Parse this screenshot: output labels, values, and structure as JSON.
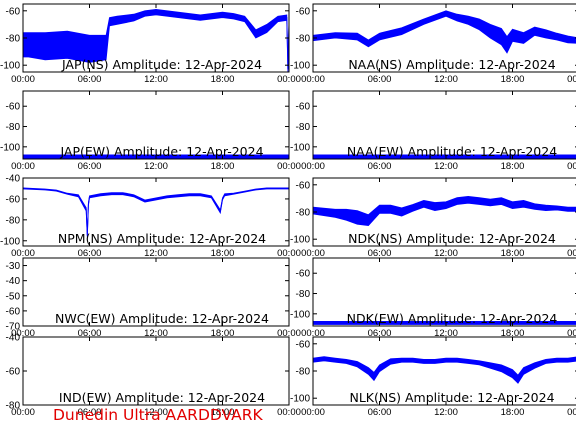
{
  "colors": {
    "trace": "#0000ff",
    "axis": "#000000",
    "footer": "#e10000",
    "background": "#ffffff"
  },
  "footer": "Dunedin Ultra AARDDVARK",
  "time_ticks": [
    "00:00",
    "06:00",
    "12:00",
    "18:00",
    "00:00"
  ],
  "chart_data": [
    {
      "type": "line",
      "title": "JAP(NS) Amplitude: 12-Apr-2024",
      "ylim": [
        -105,
        -55
      ],
      "yticks": [
        -60,
        -80,
        -100
      ],
      "series": [
        {
          "x": [
            0,
            0.5,
            2,
            4,
            6,
            7.5,
            7.8,
            8.5,
            10,
            11,
            12,
            13,
            14,
            15,
            16,
            17,
            18,
            19,
            20,
            21,
            22,
            23,
            23.8,
            23.9,
            24
          ],
          "values": [
            -85,
            -85,
            -86,
            -85,
            -88,
            -87,
            -68,
            -67,
            -65,
            -62,
            -61,
            -62,
            -63,
            -64,
            -65,
            -64,
            -63,
            -64,
            -66,
            -77,
            -73,
            -66,
            -65,
            -103,
            -70
          ],
          "spread": [
            18,
            18,
            20,
            20,
            20,
            18,
            6,
            6,
            5,
            4,
            4,
            4,
            4,
            4,
            4,
            4,
            4,
            4,
            4,
            6,
            6,
            4,
            4,
            4,
            4
          ]
        }
      ]
    },
    {
      "type": "line",
      "title": "NAA(NS) Amplitude: 12-Apr-2024",
      "ylim": [
        -105,
        -55
      ],
      "yticks": [
        -60,
        -80,
        -100
      ],
      "series": [
        {
          "x": [
            0,
            2,
            4,
            5,
            6,
            8,
            10,
            12,
            13,
            14,
            15,
            16,
            17,
            17.5,
            18,
            19,
            20,
            21,
            22,
            23,
            24
          ],
          "values": [
            -80,
            -78,
            -79,
            -84,
            -79,
            -75,
            -68,
            -62,
            -65,
            -67,
            -70,
            -75,
            -79,
            -85,
            -78,
            -80,
            -75,
            -77,
            -79,
            -81,
            -82
          ],
          "spread": [
            4,
            4,
            5,
            5,
            5,
            5,
            4,
            4,
            5,
            6,
            8,
            10,
            12,
            12,
            9,
            8,
            6,
            6,
            5,
            5,
            4
          ]
        }
      ]
    },
    {
      "type": "line",
      "title": "JAP(EW) Amplitude: 12-Apr-2024",
      "ylim": [
        -112,
        -45
      ],
      "yticks": [
        -60,
        -80,
        -100
      ],
      "series": [
        {
          "x": [
            0,
            3,
            6,
            9,
            12,
            15,
            18,
            21,
            24
          ],
          "values": [
            -110,
            -110,
            -110,
            -110,
            -110,
            -110,
            -110,
            -110,
            -110
          ],
          "spread": [
            4,
            4,
            4,
            4,
            4,
            4,
            4,
            4,
            4
          ]
        }
      ]
    },
    {
      "type": "line",
      "title": "NAA(EW) Amplitude: 12-Apr-2024",
      "ylim": [
        -112,
        -45
      ],
      "yticks": [
        -60,
        -80,
        -100
      ],
      "series": [
        {
          "x": [
            0,
            3,
            6,
            9,
            12,
            15,
            18,
            21,
            24
          ],
          "values": [
            -110,
            -110,
            -110,
            -110,
            -110,
            -110,
            -110,
            -110,
            -110
          ],
          "spread": [
            4,
            4,
            4,
            4,
            4,
            4,
            4,
            4,
            4
          ]
        }
      ]
    },
    {
      "type": "line",
      "title": "NPM(NS) Amplitude: 12-Apr-2024",
      "ylim": [
        -105,
        -40
      ],
      "yticks": [
        -40,
        -60,
        -80,
        -100
      ],
      "series": [
        {
          "x": [
            0,
            2,
            3,
            4,
            5,
            5.7,
            5.8,
            5.9,
            6,
            7,
            8,
            9,
            10,
            11,
            12,
            13,
            14,
            15,
            16,
            17,
            17.8,
            18,
            18.2,
            19,
            20,
            21,
            22,
            23,
            24
          ],
          "values": [
            -50,
            -51,
            -52,
            -55,
            -57,
            -70,
            -95,
            -65,
            -58,
            -56,
            -55,
            -55,
            -57,
            -62,
            -60,
            -58,
            -57,
            -56,
            -56,
            -58,
            -72,
            -60,
            -56,
            -55,
            -53,
            -51,
            -50,
            -50,
            -50
          ],
          "spread": [
            1,
            1,
            1,
            1,
            2,
            3,
            3,
            3,
            2,
            2,
            2,
            2,
            2,
            2,
            2,
            2,
            2,
            2,
            2,
            2,
            3,
            2,
            2,
            1,
            1,
            1,
            1,
            1,
            1
          ]
        }
      ]
    },
    {
      "type": "line",
      "title": "NDK(NS) Amplitude: 12-Apr-2024",
      "ylim": [
        -105,
        -55
      ],
      "yticks": [
        -60,
        -80,
        -100
      ],
      "series": [
        {
          "x": [
            0,
            2,
            3,
            4,
            5,
            6,
            7,
            8,
            9,
            10,
            11,
            12,
            13,
            14,
            15,
            16,
            17,
            18,
            19,
            20,
            21,
            22,
            23,
            24
          ],
          "values": [
            -79,
            -81,
            -82,
            -84,
            -86,
            -78,
            -78,
            -80,
            -77,
            -74,
            -76,
            -75,
            -72,
            -71,
            -72,
            -73,
            -72,
            -75,
            -74,
            -76,
            -77,
            -77,
            -78,
            -78
          ],
          "spread": [
            5,
            6,
            8,
            10,
            8,
            6,
            6,
            6,
            5,
            5,
            6,
            5,
            5,
            5,
            5,
            5,
            5,
            5,
            5,
            4,
            4,
            3,
            3,
            3
          ]
        }
      ]
    },
    {
      "type": "line",
      "title": "NWC(EW) Amplitude: 12-Apr-2024",
      "ylim": [
        -70,
        -25
      ],
      "yticks": [
        -30,
        -40,
        -50,
        -60,
        -70
      ],
      "series": []
    },
    {
      "type": "line",
      "title": "NDK(EW) Amplitude: 12-Apr-2024",
      "ylim": [
        -112,
        -45
      ],
      "yticks": [
        -60,
        -80,
        -100
      ],
      "series": [
        {
          "x": [
            0,
            3,
            6,
            9,
            12,
            15,
            18,
            21,
            24
          ],
          "values": [
            -109,
            -109,
            -109,
            -109,
            -109,
            -109,
            -109,
            -109,
            -109
          ],
          "spread": [
            3,
            3,
            3,
            3,
            3,
            3,
            3,
            3,
            3
          ]
        }
      ]
    },
    {
      "type": "line",
      "title": "IND(EW) Amplitude: 12-Apr-2024",
      "ylim": [
        -80,
        -40
      ],
      "yticks": [
        -40,
        -60,
        -80
      ],
      "series": []
    },
    {
      "type": "line",
      "title": "NLK(NS) Amplitude: 12-Apr-2024",
      "ylim": [
        -105,
        -55
      ],
      "yticks": [
        -60,
        -80,
        -100
      ],
      "series": [
        {
          "x": [
            0,
            1,
            2,
            3,
            4,
            5,
            5.5,
            6,
            7,
            8,
            9,
            10,
            11,
            12,
            13,
            14,
            15,
            16,
            17,
            18,
            18.5,
            19,
            20,
            21,
            22,
            23,
            24
          ],
          "values": [
            -72,
            -71,
            -72,
            -73,
            -75,
            -80,
            -84,
            -78,
            -73,
            -72,
            -72,
            -73,
            -73,
            -72,
            -72,
            -73,
            -74,
            -76,
            -78,
            -82,
            -86,
            -80,
            -76,
            -73,
            -72,
            -72,
            -71
          ],
          "spread": [
            3,
            3,
            3,
            3,
            4,
            5,
            6,
            5,
            4,
            3,
            3,
            3,
            3,
            3,
            3,
            3,
            3,
            4,
            5,
            6,
            6,
            5,
            4,
            3,
            3,
            3,
            3
          ]
        }
      ]
    }
  ]
}
